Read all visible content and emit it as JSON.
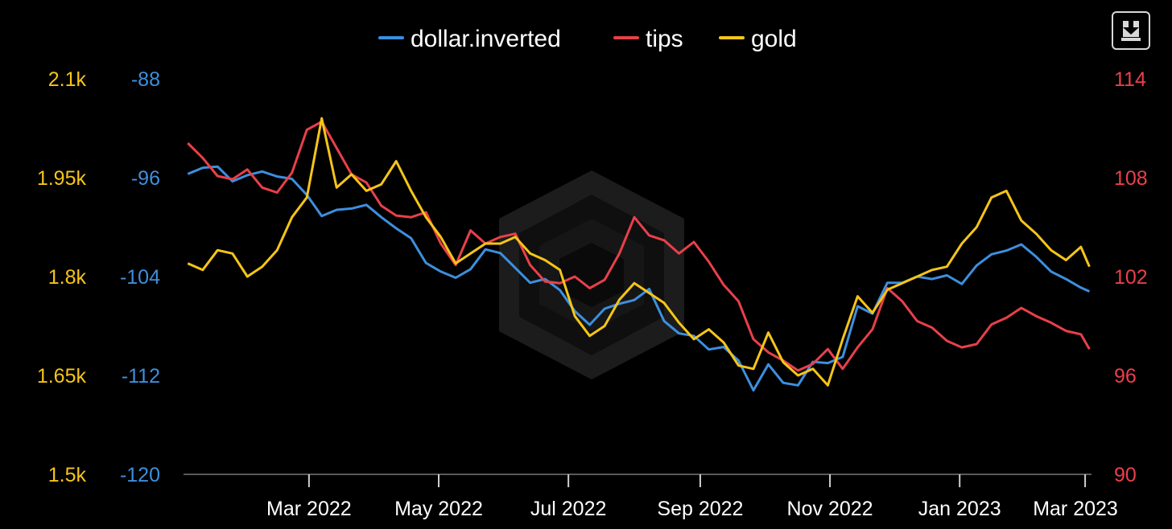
{
  "toolbar": {
    "download_icon": "download-icon"
  },
  "chart_data": {
    "type": "line",
    "title": "",
    "xlabel": "",
    "x_range": [
      "2022-01-01",
      "2023-03-04"
    ],
    "x_ticks": [
      {
        "date": "2022-03-01",
        "label": "Mar 2022"
      },
      {
        "date": "2022-05-01",
        "label": "May 2022"
      },
      {
        "date": "2022-07-01",
        "label": "Jul 2022"
      },
      {
        "date": "2022-09-01",
        "label": "Sep 2022"
      },
      {
        "date": "2022-11-01",
        "label": "Nov 2022"
      },
      {
        "date": "2023-01-01",
        "label": "Jan 2023"
      },
      {
        "date": "2023-03-01",
        "label": "Mar 2023"
      }
    ],
    "grid": false,
    "legend_position": "top-center",
    "axes": {
      "gold": {
        "side": "left-outer",
        "range": [
          1500,
          2100
        ],
        "color": "#f5c518",
        "ticks": [
          {
            "v": 2100,
            "label": "2.1k"
          },
          {
            "v": 1950,
            "label": "1.95k"
          },
          {
            "v": 1800,
            "label": "1.8k"
          },
          {
            "v": 1650,
            "label": "1.65k"
          },
          {
            "v": 1500,
            "label": "1.5k"
          }
        ]
      },
      "dollar": {
        "side": "left-inner",
        "range": [
          -120,
          -88
        ],
        "color": "#3d8fde",
        "ticks": [
          {
            "v": -88,
            "label": "-88"
          },
          {
            "v": -96,
            "label": "-96"
          },
          {
            "v": -104,
            "label": "-104"
          },
          {
            "v": -112,
            "label": "-112"
          },
          {
            "v": -120,
            "label": "-120"
          }
        ]
      },
      "tips": {
        "side": "right",
        "range": [
          90,
          114
        ],
        "color": "#e8404a",
        "ticks": [
          {
            "v": 114,
            "label": "114"
          },
          {
            "v": 108,
            "label": "108"
          },
          {
            "v": 102,
            "label": "102"
          },
          {
            "v": 96,
            "label": "96"
          },
          {
            "v": 90,
            "label": "90"
          }
        ]
      }
    },
    "series": [
      {
        "name": "dollar.inverted",
        "axis": "dollar",
        "color": "#3d8fde",
        "points": [
          [
            "2022-01-03",
            -95.7
          ],
          [
            "2022-01-10",
            -95.2
          ],
          [
            "2022-01-17",
            -95.1
          ],
          [
            "2022-01-24",
            -96.3
          ],
          [
            "2022-01-31",
            -95.8
          ],
          [
            "2022-02-07",
            -95.5
          ],
          [
            "2022-02-14",
            -95.9
          ],
          [
            "2022-02-21",
            -96.1
          ],
          [
            "2022-02-28",
            -97.4
          ],
          [
            "2022-03-07",
            -99.1
          ],
          [
            "2022-03-14",
            -98.6
          ],
          [
            "2022-03-21",
            -98.5
          ],
          [
            "2022-03-28",
            -98.2
          ],
          [
            "2022-04-04",
            -99.2
          ],
          [
            "2022-04-11",
            -100.1
          ],
          [
            "2022-04-18",
            -100.9
          ],
          [
            "2022-04-25",
            -102.9
          ],
          [
            "2022-05-02",
            -103.6
          ],
          [
            "2022-05-09",
            -104.1
          ],
          [
            "2022-05-16",
            -103.4
          ],
          [
            "2022-05-23",
            -101.8
          ],
          [
            "2022-05-30",
            -102.1
          ],
          [
            "2022-06-06",
            -103.3
          ],
          [
            "2022-06-13",
            -104.5
          ],
          [
            "2022-06-20",
            -104.2
          ],
          [
            "2022-06-27",
            -105.1
          ],
          [
            "2022-07-04",
            -106.8
          ],
          [
            "2022-07-11",
            -107.9
          ],
          [
            "2022-07-18",
            -106.6
          ],
          [
            "2022-07-25",
            -106.2
          ],
          [
            "2022-08-01",
            -105.9
          ],
          [
            "2022-08-08",
            -105.0
          ],
          [
            "2022-08-15",
            -107.6
          ],
          [
            "2022-08-22",
            -108.6
          ],
          [
            "2022-08-29",
            -108.8
          ],
          [
            "2022-09-05",
            -109.9
          ],
          [
            "2022-09-12",
            -109.7
          ],
          [
            "2022-09-19",
            -110.8
          ],
          [
            "2022-09-26",
            -113.2
          ],
          [
            "2022-10-03",
            -111.1
          ],
          [
            "2022-10-10",
            -112.6
          ],
          [
            "2022-10-17",
            -112.8
          ],
          [
            "2022-10-24",
            -110.9
          ],
          [
            "2022-10-31",
            -111.0
          ],
          [
            "2022-11-07",
            -110.5
          ],
          [
            "2022-11-14",
            -106.4
          ],
          [
            "2022-11-21",
            -107.0
          ],
          [
            "2022-11-28",
            -104.5
          ],
          [
            "2022-12-05",
            -104.5
          ],
          [
            "2022-12-12",
            -104.0
          ],
          [
            "2022-12-19",
            -104.2
          ],
          [
            "2022-12-26",
            -103.9
          ],
          [
            "2023-01-02",
            -104.6
          ],
          [
            "2023-01-09",
            -103.1
          ],
          [
            "2023-01-16",
            -102.2
          ],
          [
            "2023-01-23",
            -101.9
          ],
          [
            "2023-01-30",
            -101.4
          ],
          [
            "2023-02-06",
            -102.4
          ],
          [
            "2023-02-13",
            -103.6
          ],
          [
            "2023-02-20",
            -104.2
          ],
          [
            "2023-02-27",
            -104.9
          ],
          [
            "2023-03-03",
            -105.2
          ]
        ]
      },
      {
        "name": "tips",
        "axis": "tips",
        "color": "#e8404a",
        "points": [
          [
            "2022-01-03",
            110.1
          ],
          [
            "2022-01-10",
            109.2
          ],
          [
            "2022-01-17",
            108.1
          ],
          [
            "2022-01-24",
            107.9
          ],
          [
            "2022-01-31",
            108.5
          ],
          [
            "2022-02-07",
            107.4
          ],
          [
            "2022-02-14",
            107.1
          ],
          [
            "2022-02-21",
            108.3
          ],
          [
            "2022-02-28",
            110.9
          ],
          [
            "2022-03-07",
            111.4
          ],
          [
            "2022-03-14",
            109.8
          ],
          [
            "2022-03-21",
            108.2
          ],
          [
            "2022-03-28",
            107.7
          ],
          [
            "2022-04-04",
            106.3
          ],
          [
            "2022-04-11",
            105.7
          ],
          [
            "2022-04-18",
            105.6
          ],
          [
            "2022-04-25",
            105.9
          ],
          [
            "2022-05-02",
            104.0
          ],
          [
            "2022-05-09",
            102.7
          ],
          [
            "2022-05-16",
            104.8
          ],
          [
            "2022-05-23",
            104.0
          ],
          [
            "2022-05-30",
            104.4
          ],
          [
            "2022-06-06",
            104.6
          ],
          [
            "2022-06-13",
            102.7
          ],
          [
            "2022-06-20",
            101.7
          ],
          [
            "2022-06-27",
            101.6
          ],
          [
            "2022-07-04",
            102.0
          ],
          [
            "2022-07-11",
            101.3
          ],
          [
            "2022-07-18",
            101.8
          ],
          [
            "2022-07-25",
            103.4
          ],
          [
            "2022-08-01",
            105.6
          ],
          [
            "2022-08-08",
            104.5
          ],
          [
            "2022-08-15",
            104.2
          ],
          [
            "2022-08-22",
            103.4
          ],
          [
            "2022-08-29",
            104.1
          ],
          [
            "2022-09-05",
            102.9
          ],
          [
            "2022-09-12",
            101.5
          ],
          [
            "2022-09-19",
            100.5
          ],
          [
            "2022-09-26",
            98.2
          ],
          [
            "2022-10-03",
            97.4
          ],
          [
            "2022-10-10",
            96.9
          ],
          [
            "2022-10-17",
            96.3
          ],
          [
            "2022-10-24",
            96.7
          ],
          [
            "2022-10-31",
            97.6
          ],
          [
            "2022-11-07",
            96.4
          ],
          [
            "2022-11-14",
            97.7
          ],
          [
            "2022-11-21",
            98.8
          ],
          [
            "2022-11-28",
            101.3
          ],
          [
            "2022-12-05",
            100.5
          ],
          [
            "2022-12-12",
            99.3
          ],
          [
            "2022-12-19",
            98.9
          ],
          [
            "2022-12-26",
            98.1
          ],
          [
            "2023-01-02",
            97.7
          ],
          [
            "2023-01-09",
            97.9
          ],
          [
            "2023-01-16",
            99.1
          ],
          [
            "2023-01-23",
            99.5
          ],
          [
            "2023-01-30",
            100.1
          ],
          [
            "2023-02-06",
            99.6
          ],
          [
            "2023-02-13",
            99.2
          ],
          [
            "2023-02-20",
            98.7
          ],
          [
            "2023-02-27",
            98.5
          ],
          [
            "2023-03-03",
            97.6
          ]
        ]
      },
      {
        "name": "gold",
        "axis": "gold",
        "color": "#f5c518",
        "points": [
          [
            "2022-01-03",
            1820
          ],
          [
            "2022-01-10",
            1810
          ],
          [
            "2022-01-17",
            1840
          ],
          [
            "2022-01-24",
            1835
          ],
          [
            "2022-01-31",
            1800
          ],
          [
            "2022-02-07",
            1815
          ],
          [
            "2022-02-14",
            1840
          ],
          [
            "2022-02-21",
            1890
          ],
          [
            "2022-02-28",
            1920
          ],
          [
            "2022-03-07",
            2040
          ],
          [
            "2022-03-14",
            1935
          ],
          [
            "2022-03-21",
            1955
          ],
          [
            "2022-03-28",
            1930
          ],
          [
            "2022-04-04",
            1940
          ],
          [
            "2022-04-11",
            1975
          ],
          [
            "2022-04-18",
            1930
          ],
          [
            "2022-04-25",
            1890
          ],
          [
            "2022-05-02",
            1860
          ],
          [
            "2022-05-09",
            1820
          ],
          [
            "2022-05-16",
            1835
          ],
          [
            "2022-05-23",
            1850
          ],
          [
            "2022-05-30",
            1850
          ],
          [
            "2022-06-06",
            1860
          ],
          [
            "2022-06-13",
            1835
          ],
          [
            "2022-06-20",
            1825
          ],
          [
            "2022-06-27",
            1810
          ],
          [
            "2022-07-04",
            1740
          ],
          [
            "2022-07-11",
            1710
          ],
          [
            "2022-07-18",
            1725
          ],
          [
            "2022-07-25",
            1765
          ],
          [
            "2022-08-01",
            1790
          ],
          [
            "2022-08-08",
            1775
          ],
          [
            "2022-08-15",
            1760
          ],
          [
            "2022-08-22",
            1730
          ],
          [
            "2022-08-29",
            1705
          ],
          [
            "2022-09-05",
            1720
          ],
          [
            "2022-09-12",
            1700
          ],
          [
            "2022-09-19",
            1665
          ],
          [
            "2022-09-26",
            1660
          ],
          [
            "2022-10-03",
            1715
          ],
          [
            "2022-10-10",
            1670
          ],
          [
            "2022-10-17",
            1650
          ],
          [
            "2022-10-24",
            1660
          ],
          [
            "2022-10-31",
            1635
          ],
          [
            "2022-11-07",
            1705
          ],
          [
            "2022-11-14",
            1770
          ],
          [
            "2022-11-21",
            1745
          ],
          [
            "2022-11-28",
            1780
          ],
          [
            "2022-12-05",
            1790
          ],
          [
            "2022-12-12",
            1800
          ],
          [
            "2022-12-19",
            1810
          ],
          [
            "2022-12-26",
            1815
          ],
          [
            "2023-01-02",
            1850
          ],
          [
            "2023-01-09",
            1875
          ],
          [
            "2023-01-16",
            1920
          ],
          [
            "2023-01-23",
            1930
          ],
          [
            "2023-01-30",
            1885
          ],
          [
            "2023-02-06",
            1865
          ],
          [
            "2023-02-13",
            1840
          ],
          [
            "2023-02-20",
            1825
          ],
          [
            "2023-02-27",
            1845
          ],
          [
            "2023-03-03",
            1815
          ]
        ]
      }
    ]
  }
}
